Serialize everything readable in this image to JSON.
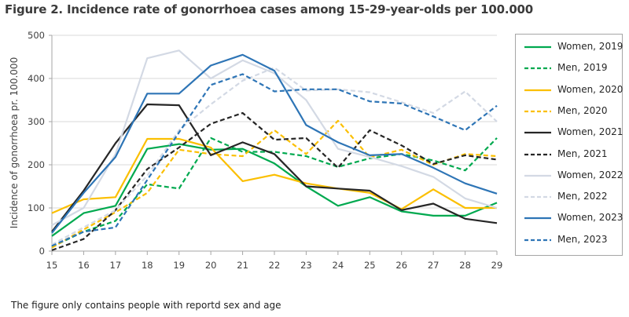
{
  "title": "Figure 2. Incidence rate of gonorrhoea cases among 15-29-year-olds per 100.000",
  "footnote": "The figure only contains people with reportd sex and age",
  "chart_data": {
    "type": "line",
    "title": "Figure 2. Incidence rate of gonorrhoea cases among 15-29-year-olds per 100.000",
    "xlabel": "",
    "ylabel": "Incidence of gonorrhoea pr. 100.000",
    "x": [
      15,
      16,
      17,
      18,
      19,
      20,
      21,
      22,
      23,
      24,
      25,
      26,
      27,
      28,
      29
    ],
    "x_tick_labels": [
      "15",
      "16",
      "17",
      "18",
      "19",
      "20",
      "21",
      "22",
      "23",
      "24",
      "25",
      "26",
      "27",
      "28",
      "29"
    ],
    "ylim": [
      0,
      500
    ],
    "y_ticks": [
      0,
      100,
      200,
      300,
      400,
      500
    ],
    "y_tick_labels": [
      "0",
      "100",
      "200",
      "300",
      "400",
      "500"
    ],
    "grid": "horizontal",
    "legend_position": "right",
    "series": [
      {
        "name": "Women, 2019",
        "color": "#00a94f",
        "dashed": false,
        "values": [
          35,
          88,
          105,
          237,
          248,
          235,
          237,
          203,
          150,
          105,
          125,
          92,
          82,
          82,
          112
        ]
      },
      {
        "name": "Men, 2019",
        "color": "#00a94f",
        "dashed": true,
        "values": [
          10,
          45,
          70,
          155,
          145,
          262,
          230,
          230,
          220,
          195,
          215,
          225,
          210,
          187,
          262
        ]
      },
      {
        "name": "Women, 2020",
        "color": "#fbbf00",
        "dashed": false,
        "values": [
          88,
          120,
          125,
          260,
          260,
          240,
          162,
          177,
          157,
          145,
          135,
          97,
          143,
          100,
          100
        ]
      },
      {
        "name": "Men, 2020",
        "color": "#fbbf00",
        "dashed": true,
        "values": [
          8,
          50,
          90,
          135,
          235,
          225,
          220,
          280,
          225,
          302,
          217,
          235,
          200,
          225,
          220
        ]
      },
      {
        "name": "Women, 2021",
        "color": "#262626",
        "dashed": false,
        "values": [
          45,
          140,
          250,
          340,
          338,
          222,
          252,
          225,
          150,
          145,
          140,
          95,
          110,
          75,
          65
        ]
      },
      {
        "name": "Men, 2021",
        "color": "#262626",
        "dashed": true,
        "values": [
          2,
          28,
          95,
          190,
          240,
          295,
          320,
          258,
          262,
          193,
          280,
          245,
          202,
          222,
          212
        ]
      },
      {
        "name": "Women, 2022",
        "color": "#d3d9e4",
        "dashed": false,
        "values": [
          60,
          100,
          225,
          447,
          465,
          400,
          442,
          412,
          350,
          237,
          218,
          197,
          172,
          122,
          100
        ]
      },
      {
        "name": "Men, 2022",
        "color": "#d3d9e4",
        "dashed": true,
        "values": [
          15,
          55,
          95,
          175,
          280,
          340,
          395,
          425,
          372,
          375,
          368,
          345,
          320,
          370,
          300
        ]
      },
      {
        "name": "Women, 2023",
        "color": "#2e75b6",
        "dashed": false,
        "values": [
          42,
          135,
          218,
          365,
          365,
          430,
          455,
          418,
          292,
          252,
          222,
          225,
          193,
          157,
          133
        ]
      },
      {
        "name": "Men, 2023",
        "color": "#2e75b6",
        "dashed": true,
        "values": [
          12,
          45,
          55,
          165,
          275,
          385,
          410,
          370,
          375,
          375,
          347,
          342,
          312,
          280,
          337
        ]
      }
    ]
  }
}
